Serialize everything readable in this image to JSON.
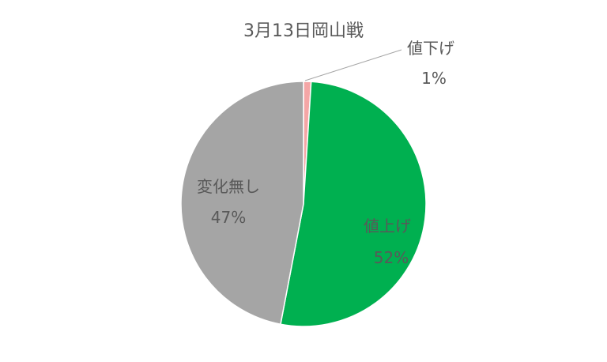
{
  "chart_data": {
    "type": "pie",
    "title": "3月13日岡山戦",
    "start": "top",
    "direction": "clockwise",
    "slices": [
      {
        "label": "値下げ",
        "value": 1,
        "value_label": "1%",
        "color": "#f4a6a6"
      },
      {
        "label": "値上げ",
        "value": 52,
        "value_label": "52%",
        "color": "#00b050"
      },
      {
        "label": "変化無し",
        "value": 47,
        "value_label": "47%",
        "color": "#a5a5a5"
      }
    ],
    "legend": "none"
  }
}
